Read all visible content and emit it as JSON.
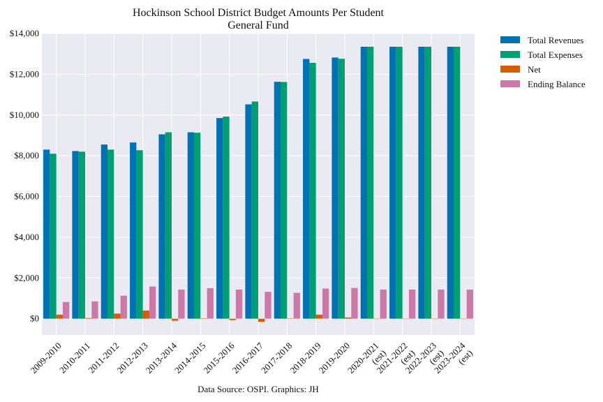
{
  "chart_data": {
    "type": "bar",
    "title": "Hockinson School District Budget Amounts Per Student",
    "subtitle": "General Fund",
    "xlabel": "",
    "ylabel": "",
    "ylim": [
      -800,
      14000
    ],
    "yticks": [
      0,
      2000,
      4000,
      6000,
      8000,
      10000,
      12000,
      14000
    ],
    "ytick_labels": [
      "$0",
      "$2,000",
      "$4,000",
      "$6,000",
      "$8,000",
      "$10,000",
      "$12,000",
      "$14,000"
    ],
    "categories": [
      "2009-2010",
      "2010-2011",
      "2011-2012",
      "2012-2013",
      "2013-2014",
      "2014-2015",
      "2015-2016",
      "2016-2017",
      "2017-2018",
      "2018-2019",
      "2019-2020",
      "2020-2021\n(est)",
      "2021-2022\n(est)",
      "2022-2023\n(est)",
      "2023-2024\n(est)"
    ],
    "series": [
      {
        "name": "Total Revenues",
        "color": "#0072b2",
        "values": [
          8300,
          8230,
          8550,
          8650,
          9050,
          9150,
          9850,
          10520,
          11630,
          12750,
          12820,
          13350,
          13350,
          13350,
          13350
        ]
      },
      {
        "name": "Total Expenses",
        "color": "#009e73",
        "values": [
          8100,
          8200,
          8300,
          8270,
          9150,
          9130,
          9920,
          10660,
          11620,
          12560,
          12760,
          13350,
          13350,
          13350,
          13350
        ]
      },
      {
        "name": "Net",
        "color": "#d55e00",
        "values": [
          200,
          30,
          250,
          400,
          -100,
          20,
          -70,
          -150,
          10,
          200,
          60,
          0,
          0,
          0,
          0
        ]
      },
      {
        "name": "Ending Balance",
        "color": "#cc79a7",
        "values": [
          820,
          850,
          1130,
          1580,
          1430,
          1500,
          1430,
          1320,
          1270,
          1480,
          1510,
          1430,
          1430,
          1430,
          1430
        ]
      }
    ],
    "grid": true,
    "legend_position": "outside-right",
    "source": "Data Source: OSPI. Graphics: JH"
  }
}
